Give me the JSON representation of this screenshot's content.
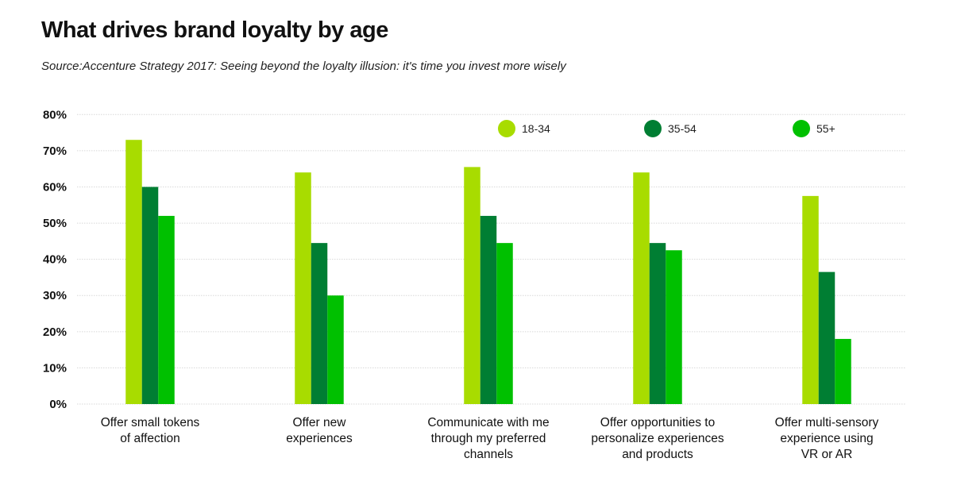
{
  "chart_data": {
    "type": "bar",
    "title": "What drives brand loyalty by age",
    "subtitle": "Source:Accenture Strategy 2017: Seeing beyond the loyalty illusion: it's time you invest more wisely",
    "categories": [
      [
        "Offer small tokens",
        "of affection"
      ],
      [
        "Offer new",
        "experiences"
      ],
      [
        "Communicate with me",
        "through my preferred",
        "channels"
      ],
      [
        "Offer opportunities to",
        "personalize experiences",
        "and products"
      ],
      [
        "Offer multi-sensory",
        "experience using",
        "VR or AR"
      ]
    ],
    "series": [
      {
        "name": "18-34",
        "color": "#a8dc00",
        "values": [
          73,
          64,
          65.5,
          64,
          57.5
        ]
      },
      {
        "name": "35-54",
        "color": "#007e33",
        "values": [
          60,
          44.5,
          52,
          44.5,
          36.5
        ]
      },
      {
        "name": "55+",
        "color": "#00c000",
        "values": [
          52,
          30,
          44.5,
          42.5,
          18
        ]
      }
    ],
    "ylim": [
      0,
      80
    ],
    "yticks": [
      "0%",
      "10%",
      "20%",
      "30%",
      "40%",
      "50%",
      "60%",
      "70%",
      "80%"
    ],
    "grid": true,
    "legend": "top-right"
  }
}
